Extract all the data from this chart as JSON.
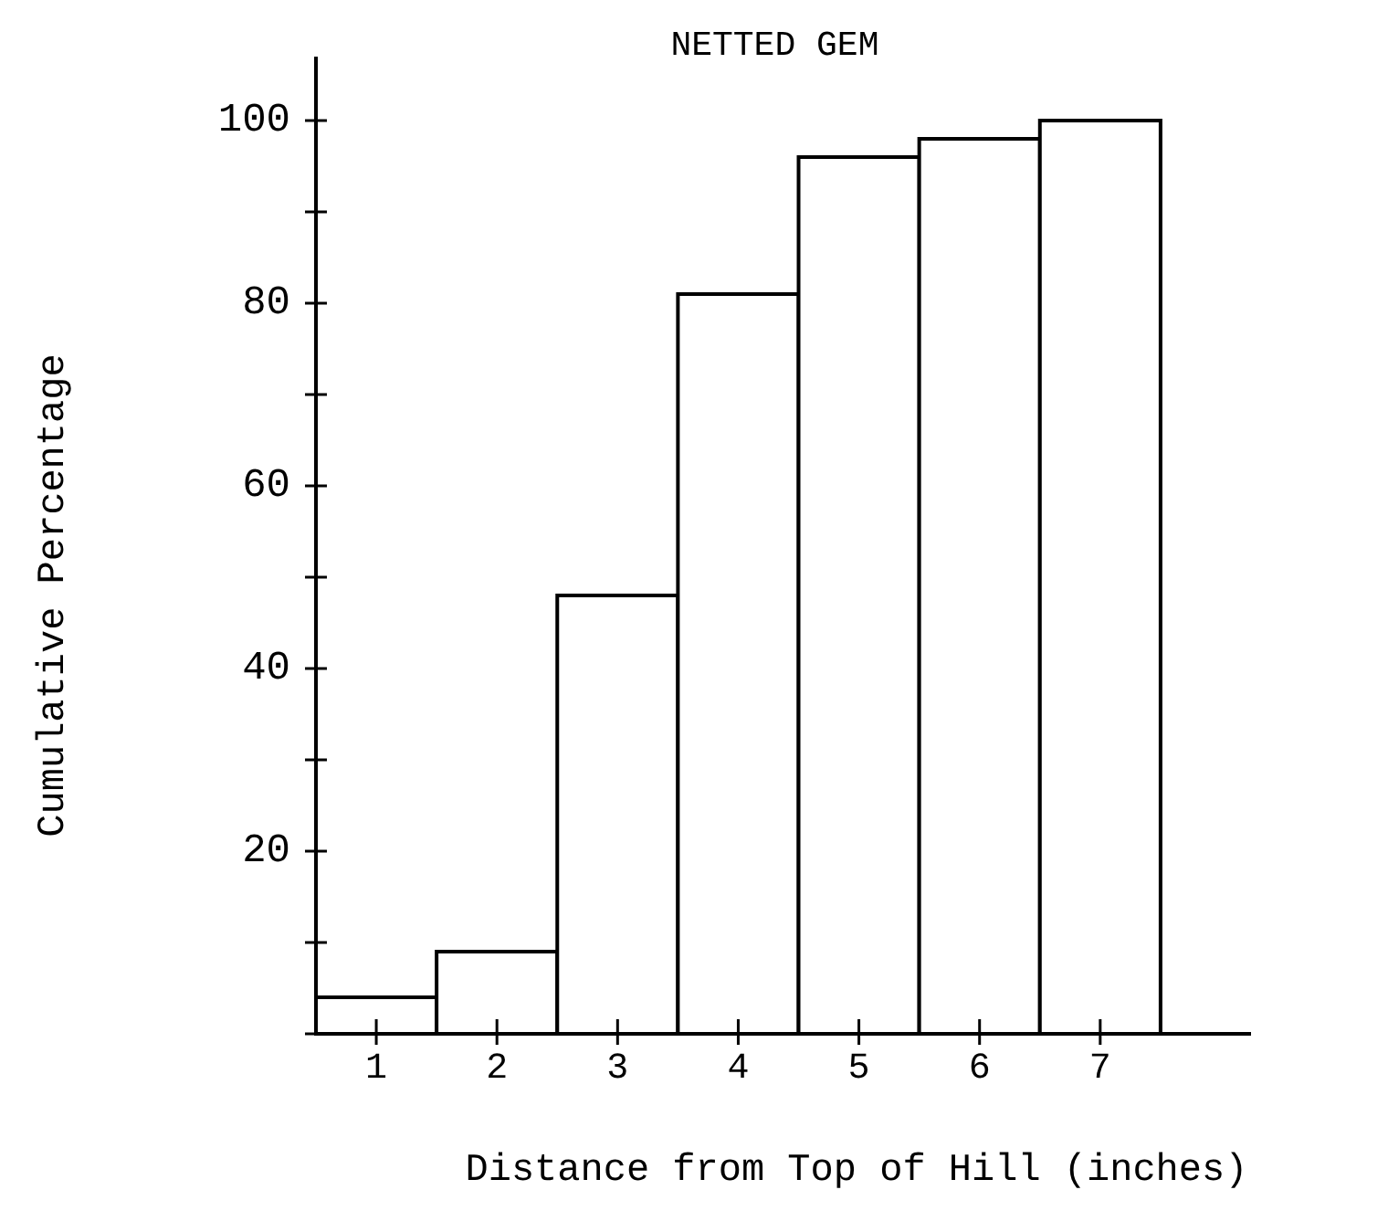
{
  "chart_data": {
    "type": "bar",
    "title": "NETTED GEM",
    "xlabel": "Distance from Top of Hill (inches)",
    "ylabel": "Cumulative Percentage",
    "categories": [
      "1",
      "2",
      "3",
      "4",
      "5",
      "6",
      "7"
    ],
    "values": [
      4,
      9,
      48,
      81,
      96,
      98,
      100
    ],
    "color": "#ffffff",
    "ylim": [
      0,
      100
    ],
    "yticks": [
      {
        "value": 0,
        "label": null
      },
      {
        "value": 10,
        "label": null
      },
      20,
      {
        "value": 30,
        "label": null
      },
      40,
      {
        "value": 50,
        "label": null
      },
      60,
      {
        "value": 70,
        "label": null
      },
      80,
      {
        "value": 90,
        "label": null
      },
      100
    ],
    "grid": false
  }
}
